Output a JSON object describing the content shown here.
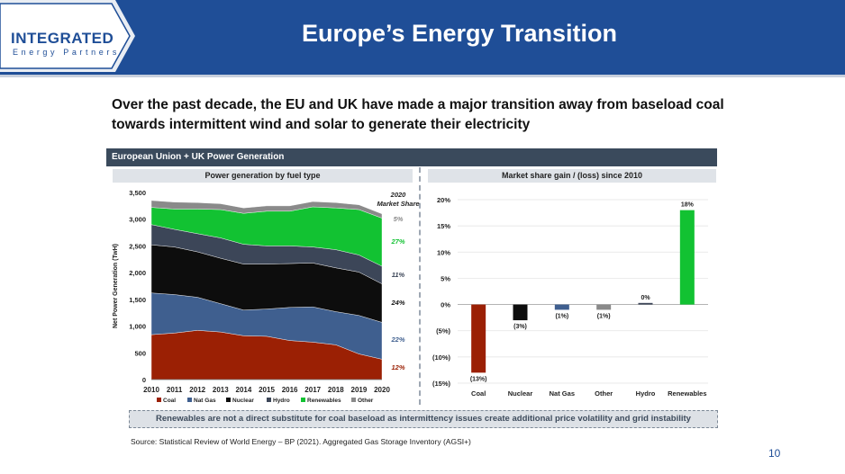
{
  "header": {
    "logo_line1": "INTEGRATED",
    "logo_line2": "Energy Partners",
    "title": "Europe’s Energy Transition",
    "bg_color": "#1f4e97"
  },
  "subtitle": "Over the past decade, the EU and UK have made a major transition away from baseload coal towards intermittent wind and solar to generate their electricity",
  "panel_title": "European Union + UK Power Generation",
  "left_chart_title": "Power generation by fuel type",
  "right_chart_title": "Market share gain / (loss) since 2010",
  "banner": "Renewables are not a direct substitute for coal baseload as intermittency issues create additional price volatility and grid instability",
  "source": "Source: Statistical Review of World Energy – BP (2021). Aggregated Gas Storage Inventory (AGSI+)",
  "page_number": "10",
  "chart_data": [
    {
      "type": "area",
      "title": "Power generation by fuel type",
      "ylabel": "Net Power Generation (TwH)",
      "xlabel": "",
      "ylim": [
        0,
        3500
      ],
      "y_ticks": [
        "0",
        "500",
        "1,000",
        "1,500",
        "2,000",
        "2,500",
        "3,000",
        "3,500"
      ],
      "x": [
        "2010",
        "2011",
        "2012",
        "2013",
        "2014",
        "2015",
        "2016",
        "2017",
        "2018",
        "2019",
        "2020"
      ],
      "stacked": true,
      "legend_position": "bottom",
      "annotation_title": "2020 Market Share",
      "series": [
        {
          "name": "Coal",
          "color": "#9b2004",
          "share_label": "12%",
          "values": [
            840,
            870,
            920,
            890,
            820,
            810,
            730,
            700,
            650,
            480,
            380
          ]
        },
        {
          "name": "Nat Gas",
          "color": "#3f5f8f",
          "share_label": "22%",
          "values": [
            780,
            720,
            620,
            530,
            480,
            510,
            620,
            660,
            620,
            720,
            690
          ]
        },
        {
          "name": "Nuclear",
          "color": "#0d0d0d",
          "share_label": "24%",
          "values": [
            900,
            890,
            850,
            850,
            860,
            840,
            820,
            820,
            820,
            810,
            720
          ]
        },
        {
          "name": "Hydro",
          "color": "#3c4658",
          "share_label": "11%",
          "values": [
            380,
            330,
            340,
            380,
            370,
            340,
            330,
            300,
            340,
            320,
            330
          ]
        },
        {
          "name": "Renewables",
          "color": "#12c232",
          "share_label": "27%",
          "values": [
            320,
            380,
            460,
            530,
            580,
            650,
            650,
            750,
            780,
            850,
            900
          ]
        },
        {
          "name": "Other",
          "color": "#8a8a8a",
          "share_label": "5%",
          "values": [
            130,
            130,
            120,
            110,
            100,
            100,
            100,
            100,
            100,
            90,
            80
          ]
        }
      ]
    },
    {
      "type": "bar",
      "title": "Market share gain / (loss) since 2010",
      "categories": [
        "Coal",
        "Nuclear",
        "Nat Gas",
        "Other",
        "Hydro",
        "Renewables"
      ],
      "values": [
        -13,
        -3,
        -1,
        -1,
        0.3,
        18
      ],
      "value_labels": [
        "(13%)",
        "(3%)",
        "(1%)",
        "(1%)",
        "0%",
        "18%"
      ],
      "colors": [
        "#9b2004",
        "#0d0d0d",
        "#3f5f8f",
        "#8a8a8a",
        "#3c4658",
        "#12c232"
      ],
      "ylim": [
        -15,
        20
      ],
      "y_ticks": [
        "(15%)",
        "(10%)",
        "(5%)",
        "0%",
        "5%",
        "10%",
        "15%",
        "20%"
      ],
      "grid": true
    }
  ]
}
